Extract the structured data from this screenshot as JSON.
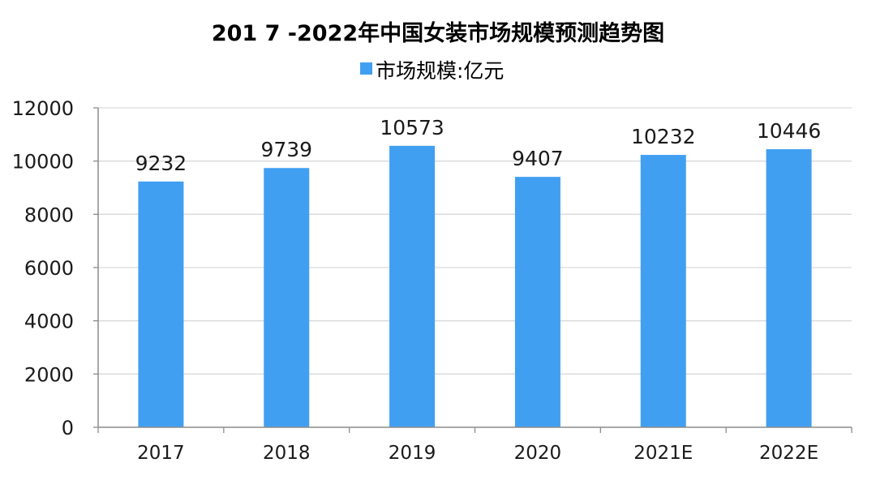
{
  "chart_data": {
    "type": "bar",
    "title": "201 7 -2022年中国女装市场规模预测趋势图",
    "legend": {
      "position": "top-center",
      "entries": [
        "市场规模:亿元"
      ]
    },
    "categories": [
      "2017",
      "2018",
      "2019",
      "2020",
      "2021E",
      "2022E"
    ],
    "series": [
      {
        "name": "市场规模:亿元",
        "values": [
          9232,
          9739,
          10573,
          9407,
          10232,
          10446
        ],
        "color": "#419ff2"
      }
    ],
    "data_labels": [
      "9232",
      "9739",
      "10573",
      "9407",
      "10232",
      "10446"
    ],
    "y_ticks": [
      "0",
      "2000",
      "4000",
      "6000",
      "8000",
      "10000",
      "12000"
    ],
    "ylim": [
      0,
      12000
    ],
    "grid": true,
    "xlabel": "",
    "ylabel": ""
  },
  "colors": {
    "bar": "#419ff2",
    "grid": "#d9d9d9",
    "axis": "#8c8c8c"
  }
}
